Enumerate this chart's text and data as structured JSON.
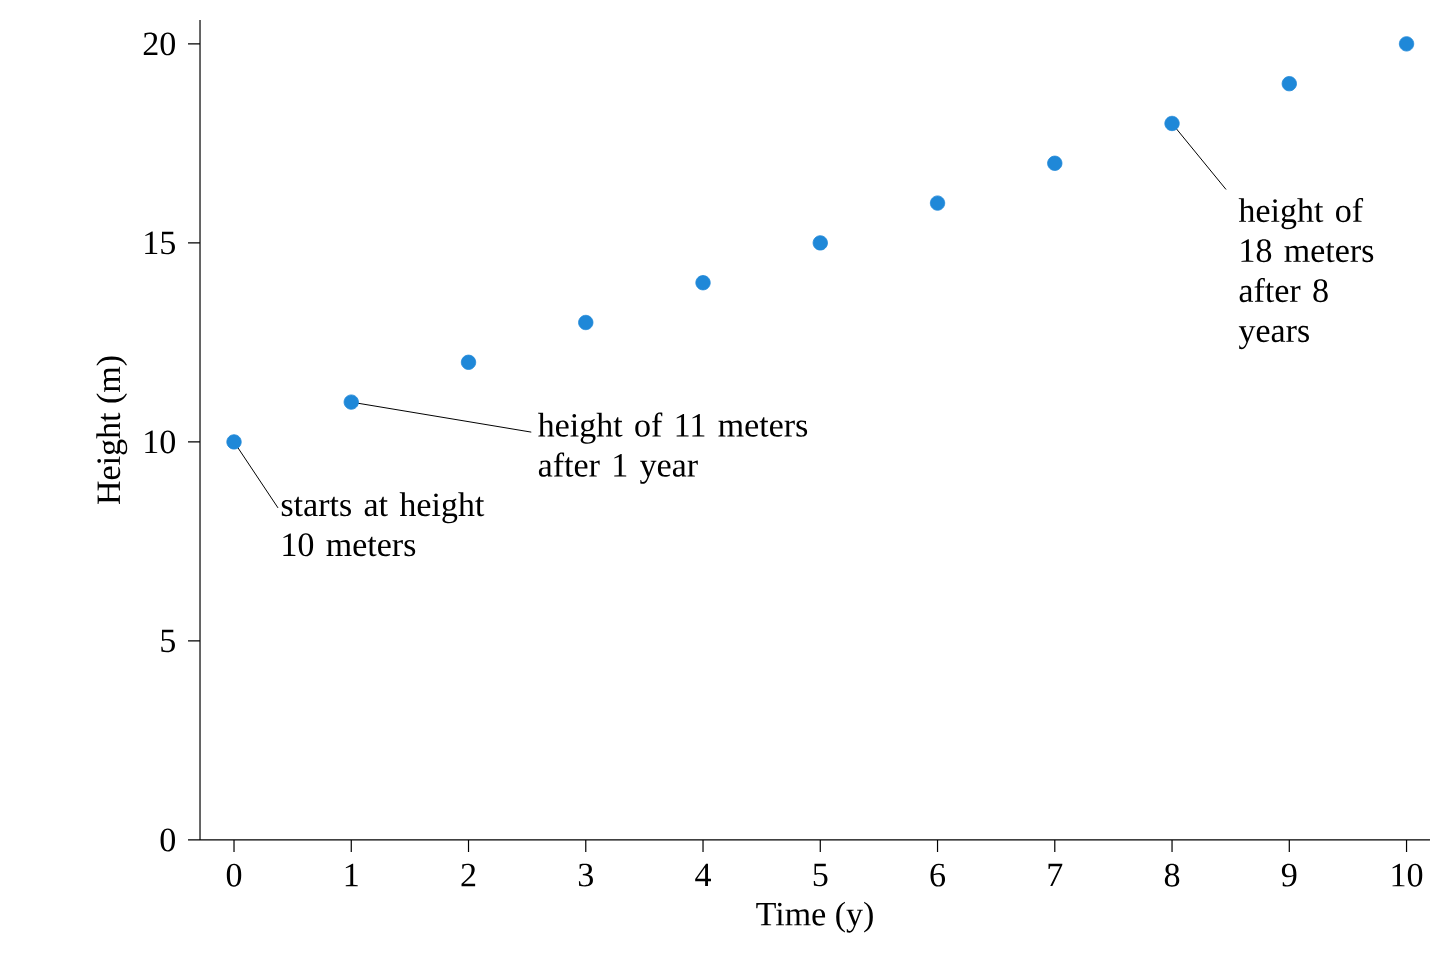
{
  "chart_data": {
    "type": "scatter",
    "xlabel": "Time (y)",
    "ylabel": "Height (m)",
    "x": [
      0,
      1,
      2,
      3,
      4,
      5,
      6,
      7,
      8,
      9,
      10
    ],
    "values": [
      10,
      11,
      12,
      13,
      14,
      15,
      16,
      17,
      18,
      19,
      20
    ],
    "color": "#1f88d8",
    "marker": "circle",
    "grid": false,
    "xlim": [
      -0.29,
      10.2
    ],
    "ylim": [
      0,
      20.6
    ],
    "xticks": [
      0,
      1,
      2,
      3,
      4,
      5,
      6,
      7,
      8,
      9,
      10
    ],
    "yticks": [
      0,
      5,
      10,
      15,
      20
    ],
    "annotations": [
      {
        "text": "starts at height 10 meters",
        "x": 0,
        "y": 10
      },
      {
        "text": "height of 11 meters after 1 year",
        "x": 1,
        "y": 11
      },
      {
        "text": "height of 18 meters after 8 years",
        "x": 8,
        "y": 18
      }
    ]
  }
}
